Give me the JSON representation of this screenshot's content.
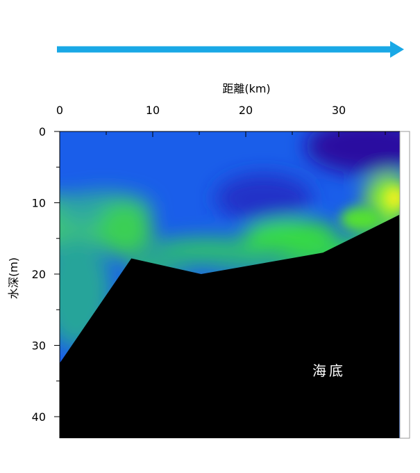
{
  "chart_data": {
    "type": "heatmap",
    "xlabel": "距離(km)",
    "ylabel": "水深(m)",
    "x_ticks": [
      0,
      10,
      20,
      30
    ],
    "y_ticks": [
      0,
      10,
      20,
      30,
      40
    ],
    "xlim": [
      0,
      36.5
    ],
    "ylim": [
      0,
      43
    ],
    "x_axis_position": "top",
    "y_axis_inverted": true,
    "annotation": "海底",
    "direction_arrow": "left-to-right",
    "seabed_profile": {
      "distance_km": [
        0,
        7.7,
        15.2,
        28.3,
        36.5
      ],
      "depth_m": [
        32.5,
        17.8,
        20.0,
        17.0,
        11.7
      ]
    },
    "colors": {
      "arrow": "#19a8e6",
      "seabed": "#000000",
      "low": "#2a1aa0",
      "mid": "#1a78ff",
      "high": "#22ee33",
      "peak": "#e8f020"
    }
  }
}
